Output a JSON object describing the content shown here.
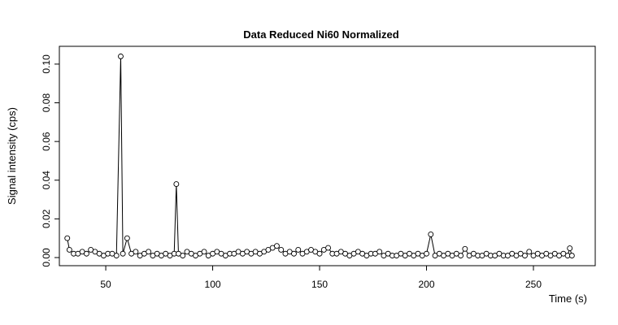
{
  "chart_data": {
    "type": "scatter",
    "title": "Data Reduced Ni60 Normalized",
    "x_label": "Time (s)",
    "y_label": "Signal intensity (cps)",
    "connect_points": true,
    "color": "#000000",
    "xlim": [
      28.3,
      278.9
    ],
    "ylim": [
      -0.0042,
      0.1092
    ],
    "xticks": [
      50,
      100,
      150,
      200,
      250
    ],
    "yticks": [
      {
        "value": 0,
        "label": "0.00"
      },
      {
        "value": 0.02,
        "label": "0.02"
      },
      {
        "value": 0.04,
        "label": "0.04"
      },
      {
        "value": 0.06,
        "label": "0.06"
      },
      {
        "value": 0.08,
        "label": "0.08"
      },
      {
        "value": 0.1,
        "label": "0.10"
      }
    ],
    "x": [
      32,
      33,
      35,
      37,
      39,
      41,
      43,
      45,
      47,
      49,
      51,
      53,
      55,
      57,
      58,
      60,
      62,
      64,
      66,
      68,
      70,
      72,
      74,
      76,
      78,
      80,
      82,
      83,
      84,
      86,
      88,
      90,
      92,
      94,
      96,
      98,
      100,
      102,
      104,
      106,
      108,
      110,
      112,
      114,
      116,
      118,
      120,
      122,
      124,
      126,
      128,
      130,
      132,
      134,
      136,
      138,
      140,
      142,
      144,
      146,
      148,
      150,
      152,
      154,
      156,
      158,
      160,
      162,
      164,
      166,
      168,
      170,
      172,
      174,
      176,
      178,
      180,
      182,
      184,
      186,
      188,
      190,
      192,
      194,
      196,
      198,
      200,
      202,
      204,
      206,
      208,
      210,
      212,
      214,
      216,
      218,
      220,
      222,
      224,
      226,
      228,
      230,
      232,
      234,
      236,
      238,
      240,
      242,
      244,
      246,
      248,
      250,
      252,
      254,
      256,
      258,
      260,
      262,
      264,
      266,
      267,
      268
    ],
    "values": [
      0.01,
      0.004,
      0.002,
      0.002,
      0.003,
      0.002,
      0.004,
      0.003,
      0.002,
      0.001,
      0.002,
      0.002,
      0.001,
      0.104,
      0.002,
      0.01,
      0.002,
      0.003,
      0.001,
      0.002,
      0.003,
      0.001,
      0.002,
      0.001,
      0.002,
      0.001,
      0.002,
      0.038,
      0.002,
      0.001,
      0.003,
      0.002,
      0.001,
      0.002,
      0.003,
      0.001,
      0.002,
      0.003,
      0.002,
      0.001,
      0.002,
      0.002,
      0.003,
      0.002,
      0.003,
      0.002,
      0.003,
      0.002,
      0.003,
      0.004,
      0.005,
      0.006,
      0.004,
      0.002,
      0.003,
      0.002,
      0.004,
      0.002,
      0.003,
      0.004,
      0.003,
      0.002,
      0.004,
      0.005,
      0.002,
      0.002,
      0.003,
      0.002,
      0.001,
      0.002,
      0.003,
      0.002,
      0.001,
      0.002,
      0.002,
      0.003,
      0.001,
      0.002,
      0.001,
      0.001,
      0.002,
      0.001,
      0.002,
      0.001,
      0.002,
      0.001,
      0.002,
      0.012,
      0.001,
      0.002,
      0.001,
      0.002,
      0.001,
      0.002,
      0.001,
      0.0045,
      0.001,
      0.002,
      0.001,
      0.001,
      0.002,
      0.001,
      0.001,
      0.002,
      0.001,
      0.001,
      0.002,
      0.001,
      0.002,
      0.001,
      0.003,
      0.001,
      0.002,
      0.001,
      0.002,
      0.001,
      0.002,
      0.001,
      0.002,
      0.001,
      0.0048,
      0.001
    ]
  }
}
